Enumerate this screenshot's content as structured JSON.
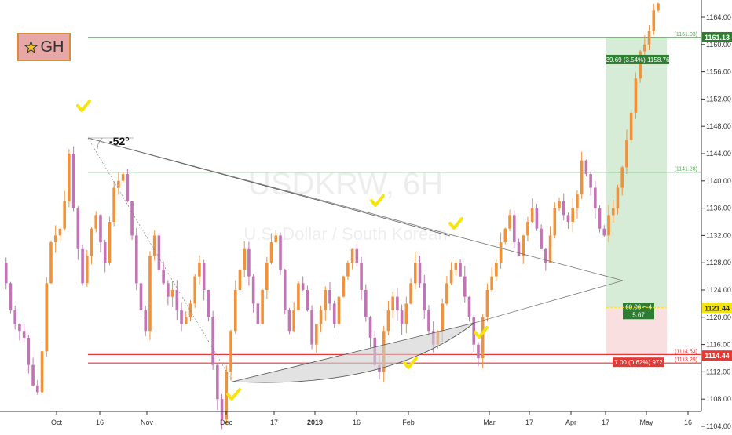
{
  "logo": {
    "star_icon": "star-icon",
    "text": "GH"
  },
  "watermark": {
    "symbol": "USDKRW, 6H",
    "description": "U.S. Dollar / South Korean"
  },
  "colors": {
    "up": "#f0923a",
    "down": "#c175b4",
    "green_line": "#4caf50",
    "red_line": "#e53935",
    "profit_zone": "#c8e6c9",
    "loss_zone": "#f8d7d7",
    "check": "#f5e50a",
    "axis_text": "#333333"
  },
  "chart_data": {
    "type": "candlestick",
    "symbol": "USDKRW",
    "timeframe": "6H",
    "ylim": [
      1100,
      1168
    ],
    "yticks": [
      1104,
      1108,
      1112,
      1116,
      1120,
      1124,
      1128,
      1132,
      1136,
      1140,
      1144,
      1148,
      1152,
      1156,
      1160,
      1164
    ],
    "xticks": [
      {
        "label": "Oct",
        "bold": false
      },
      {
        "label": "16",
        "bold": false
      },
      {
        "label": "Nov",
        "bold": false
      },
      {
        "label": "Dec",
        "bold": false
      },
      {
        "label": "17",
        "bold": false
      },
      {
        "label": "2019",
        "bold": true
      },
      {
        "label": "16",
        "bold": false
      },
      {
        "label": "Feb",
        "bold": false
      },
      {
        "label": "Mar",
        "bold": false
      },
      {
        "label": "17",
        "bold": false
      },
      {
        "label": "Apr",
        "bold": false
      },
      {
        "label": "17",
        "bold": false
      },
      {
        "label": "May",
        "bold": false
      },
      {
        "label": "16",
        "bold": false
      }
    ],
    "price_path": [
      1128,
      1125,
      1121,
      1119,
      1118,
      1117,
      1113,
      1110,
      1109,
      1115,
      1125,
      1131,
      1132,
      1133,
      1137,
      1144,
      1136,
      1130,
      1125,
      1129,
      1133,
      1135,
      1131,
      1128,
      1134,
      1139,
      1140,
      1141,
      1137,
      1132,
      1125,
      1121,
      1118,
      1129,
      1132,
      1127,
      1125,
      1123,
      1124,
      1121,
      1119,
      1120,
      1122,
      1126,
      1128,
      1124,
      1120,
      1113,
      1108,
      1105,
      1112,
      1118,
      1124,
      1127,
      1130,
      1126,
      1122,
      1119,
      1124,
      1128,
      1131,
      1132,
      1127,
      1121,
      1118,
      1121,
      1125,
      1124,
      1121,
      1116,
      1119,
      1121,
      1124,
      1122,
      1119,
      1123,
      1126,
      1128,
      1130,
      1128,
      1124,
      1120,
      1117,
      1113,
      1112,
      1118,
      1121,
      1123,
      1121,
      1119,
      1122,
      1125,
      1128,
      1125,
      1121,
      1118,
      1116,
      1118,
      1122,
      1125,
      1127,
      1128,
      1126,
      1123,
      1120,
      1116,
      1114,
      1120,
      1124,
      1126,
      1128,
      1131,
      1133,
      1135,
      1131,
      1129,
      1132,
      1134,
      1136,
      1133,
      1130,
      1128,
      1132,
      1136,
      1137,
      1135,
      1134,
      1136,
      1138,
      1143,
      1141,
      1139,
      1136,
      1133,
      1132,
      1135,
      1136,
      1139,
      1142,
      1146,
      1150,
      1155,
      1159,
      1160,
      1162,
      1165,
      1166
    ],
    "horizontal_lines": [
      {
        "price": 1161.03,
        "label": "(1161.03)",
        "color_key": "green_line"
      },
      {
        "price": 1141.28,
        "label": "(1141.28)",
        "color_key": "green_line"
      },
      {
        "price": 1114.53,
        "label": "(1114.53)",
        "color_key": "red_line"
      },
      {
        "price": 1113.29,
        "label": "(1113.29)",
        "color_key": "red_line"
      }
    ],
    "price_labels": [
      {
        "price": 1161.13,
        "text": "1161.13",
        "bg": "#2e7d32",
        "fg": "#ffffff"
      },
      {
        "price": 1121.44,
        "text": "1121.44",
        "bg": "#f5e50a",
        "fg": "#333333"
      },
      {
        "price": 1114.44,
        "text": "1114.44",
        "bg": "#e53935",
        "fg": "#ffffff"
      }
    ],
    "position": {
      "entry": 1121.44,
      "target": 1161.13,
      "stop": 1114.44,
      "target_label": "39.69 (3.54%) 1158.76",
      "entry_label_1": "60.06 ~ 4",
      "entry_label_2": "5.67",
      "stop_label": "7.00 (0.62%) 972"
    },
    "angle_label": "-52°"
  }
}
